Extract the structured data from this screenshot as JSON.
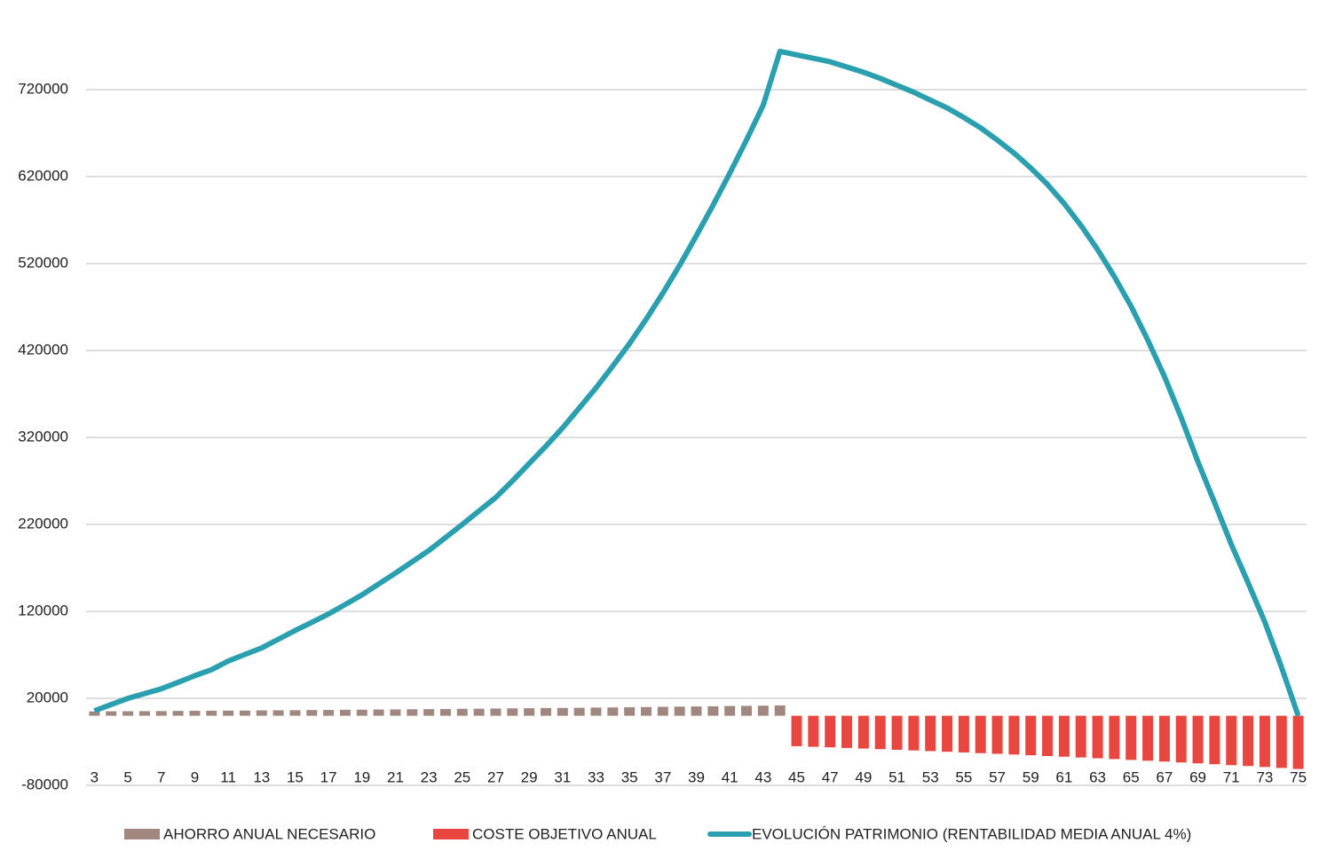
{
  "chart_data": {
    "type": "bar_line",
    "categories": [
      "3",
      null,
      "5",
      null,
      "7",
      null,
      "9",
      null,
      "11",
      null,
      "13",
      null,
      "15",
      null,
      "17",
      null,
      "19",
      null,
      "21",
      null,
      "23",
      null,
      "25",
      null,
      "27",
      null,
      "29",
      null,
      "31",
      null,
      "33",
      null,
      "35",
      null,
      "37",
      null,
      "39",
      null,
      "41",
      null,
      "43",
      null,
      "45",
      null,
      "47",
      null,
      "49",
      null,
      "51",
      null,
      "53",
      null,
      "55",
      null,
      "57",
      null,
      "59",
      null,
      "61",
      null,
      "63",
      null,
      "65",
      null,
      "67",
      null,
      "69",
      null,
      "71",
      null,
      "73",
      null,
      "75"
    ],
    "series": [
      {
        "name": "AHORRO ANUAL NECESARIO",
        "type": "bar",
        "color": "#a08880",
        "values": [
          5000,
          5100,
          5200,
          5300,
          5400,
          5600,
          5700,
          5800,
          5900,
          6000,
          6200,
          6300,
          6400,
          6600,
          6700,
          6900,
          7000,
          7200,
          7300,
          7500,
          7600,
          7800,
          8000,
          8100,
          8300,
          8500,
          8700,
          8900,
          9000,
          9200,
          9400,
          9600,
          9800,
          10000,
          10300,
          10500,
          10700,
          10900,
          11200,
          11400,
          11600,
          11900,
          null,
          null,
          null,
          null,
          null,
          null,
          null,
          null,
          null,
          null,
          null,
          null,
          null,
          null,
          null,
          null,
          null,
          null,
          null,
          null,
          null,
          null,
          null,
          null,
          null,
          null,
          null,
          null,
          null,
          null,
          null
        ]
      },
      {
        "name": "COSTE OBJETIVO ANUAL",
        "type": "bar",
        "color": "#e8463f",
        "values": [
          null,
          null,
          null,
          null,
          null,
          null,
          null,
          null,
          null,
          null,
          null,
          null,
          null,
          null,
          null,
          null,
          null,
          null,
          null,
          null,
          null,
          null,
          null,
          null,
          null,
          null,
          null,
          null,
          null,
          null,
          null,
          null,
          null,
          null,
          null,
          null,
          null,
          null,
          null,
          null,
          null,
          null,
          -35000,
          -35700,
          -36300,
          -37000,
          -37700,
          -38400,
          -39100,
          -39900,
          -40600,
          -41400,
          -42200,
          -43000,
          -43800,
          -44600,
          -45400,
          -46300,
          -47100,
          -48000,
          -48900,
          -49800,
          -50800,
          -51700,
          -52700,
          -53700,
          -54700,
          -55700,
          -56800,
          -57800,
          -58900,
          -60000,
          -61200
        ]
      },
      {
        "name": "EVOLUCIÓN PATRIMONIO (RENTABILIDAD MEDIA ANUAL 4%)",
        "type": "line",
        "color": "#2a9fb0",
        "values": [
          5700,
          13000,
          20000,
          25500,
          31000,
          38500,
          46000,
          53000,
          63000,
          70500,
          78000,
          88000,
          98000,
          107500,
          117000,
          128000,
          139000,
          151500,
          164000,
          177000,
          190000,
          205000,
          220000,
          235500,
          251000,
          270000,
          290000,
          310000,
          331000,
          354000,
          377000,
          402000,
          428000,
          456000,
          486000,
          518000,
          552000,
          587000,
          624000,
          662000,
          702000,
          764000,
          760000,
          756000,
          752000,
          746000,
          740000,
          733000,
          725000,
          717000,
          708000,
          699000,
          688000,
          676000,
          662000,
          647000,
          630000,
          611000,
          589000,
          564000,
          536000,
          505000,
          471000,
          432000,
          390000,
          343000,
          292000,
          245000,
          197000,
          153000,
          108000,
          56000,
          0
        ]
      }
    ],
    "ylim": [
      -80000,
      800000
    ],
    "yticks": [
      -80000,
      20000,
      120000,
      220000,
      320000,
      420000,
      520000,
      620000,
      720000
    ],
    "grid": true
  }
}
